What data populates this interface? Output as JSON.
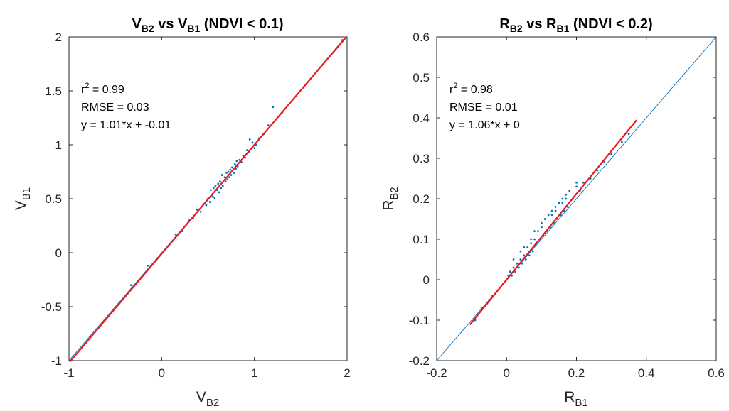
{
  "chart_data": [
    {
      "type": "scatter",
      "title_main": "V",
      "title_sub1": "B2",
      "title_mid": " vs V",
      "title_sub2": "B1",
      "title_tail": " (NDVI < 0.1)",
      "xlabel_main": "V",
      "xlabel_sub": "B2",
      "ylabel_main": "V",
      "ylabel_sub": "B1",
      "xlim": [
        -1,
        2
      ],
      "ylim": [
        -1,
        2
      ],
      "xticks": [
        -1,
        0,
        1,
        2
      ],
      "xtick_labels": [
        "-1",
        "0",
        "1",
        "2"
      ],
      "yticks": [
        -1,
        -0.5,
        0,
        0.5,
        1,
        1.5,
        2
      ],
      "ytick_labels": [
        "-1",
        "-0.5",
        "0",
        "0.5",
        "1",
        "1.5",
        "2"
      ],
      "grid": false,
      "annotations": {
        "r2_prefix": "r",
        "r2_sup": "2",
        "r2_value": " = 0.99",
        "rmse": "RMSE = 0.03",
        "equation": "y = 1.01*x + -0.01"
      },
      "reference_line": {
        "name": "1:1",
        "slope": 1,
        "intercept": 0,
        "x_range": [
          -1,
          2
        ],
        "color": "#0072BD"
      },
      "fit_line": {
        "name": "fit",
        "slope": 1.01,
        "intercept": -0.01,
        "x_range": [
          -0.99,
          1.98
        ],
        "color": "#E81C1C"
      },
      "scatter_color": "#0072BD",
      "points": {
        "x": [
          -0.33,
          -0.15,
          0.15,
          0.22,
          0.3,
          0.34,
          0.38,
          0.42,
          0.45,
          0.48,
          0.5,
          0.52,
          0.53,
          0.55,
          0.56,
          0.57,
          0.58,
          0.6,
          0.61,
          0.62,
          0.63,
          0.64,
          0.65,
          0.66,
          0.68,
          0.69,
          0.7,
          0.71,
          0.72,
          0.73,
          0.74,
          0.75,
          0.76,
          0.78,
          0.79,
          0.8,
          0.81,
          0.82,
          0.84,
          0.86,
          0.88,
          0.9,
          0.92,
          0.94,
          0.95,
          0.97,
          0.98,
          1.0,
          1.02,
          1.05,
          1.1,
          1.15,
          1.2,
          1.3,
          1.95
        ],
        "y": [
          -0.3,
          -0.12,
          0.17,
          0.2,
          0.3,
          0.32,
          0.4,
          0.38,
          0.45,
          0.44,
          0.5,
          0.47,
          0.58,
          0.52,
          0.6,
          0.51,
          0.62,
          0.58,
          0.64,
          0.56,
          0.66,
          0.6,
          0.72,
          0.62,
          0.7,
          0.66,
          0.74,
          0.68,
          0.75,
          0.7,
          0.77,
          0.72,
          0.79,
          0.74,
          0.82,
          0.78,
          0.85,
          0.8,
          0.86,
          0.84,
          0.9,
          0.88,
          0.95,
          0.93,
          1.05,
          0.96,
          1.02,
          0.97,
          1.0,
          1.06,
          1.1,
          1.18,
          1.35,
          1.3,
          1.97
        ]
      }
    },
    {
      "type": "scatter",
      "title_main": "R",
      "title_sub1": "B2",
      "title_mid": " vs R",
      "title_sub2": "B1",
      "title_tail": " (NDVI < 0.2)",
      "xlabel_main": "R",
      "xlabel_sub": "B1",
      "ylabel_main": "R",
      "ylabel_sub": "B2",
      "xlim": [
        -0.2,
        0.6
      ],
      "ylim": [
        -0.2,
        0.6
      ],
      "xticks": [
        -0.2,
        0,
        0.2,
        0.4,
        0.6
      ],
      "xtick_labels": [
        "-0.2",
        "0",
        "0.2",
        "0.4",
        "0.6"
      ],
      "yticks": [
        -0.2,
        -0.1,
        0,
        0.1,
        0.2,
        0.3,
        0.4,
        0.5,
        0.6
      ],
      "ytick_labels": [
        "-0.2",
        "-0.1",
        "0",
        "0.1",
        "0.2",
        "0.3",
        "0.4",
        "0.5",
        "0.6"
      ],
      "grid": false,
      "annotations": {
        "r2_prefix": "r",
        "r2_sup": "2",
        "r2_value": " = 0.98",
        "rmse": "RMSE = 0.01",
        "equation": "y = 1.06*x + 0"
      },
      "reference_line": {
        "name": "1:1",
        "slope": 1,
        "intercept": 0,
        "x_range": [
          -0.2,
          0.6
        ],
        "color": "#0072BD"
      },
      "fit_line": {
        "name": "fit",
        "slope": 1.06,
        "intercept": 0,
        "x_range": [
          -0.105,
          0.372
        ],
        "color": "#E81C1C"
      },
      "scatter_color": "#0072BD",
      "points": {
        "x": [
          -0.09,
          -0.07,
          -0.05,
          -0.04,
          -0.02,
          -0.01,
          0.0,
          0.005,
          0.01,
          0.015,
          0.02,
          0.025,
          0.03,
          0.035,
          0.04,
          0.045,
          0.05,
          0.055,
          0.06,
          0.065,
          0.07,
          0.075,
          0.08,
          0.085,
          0.09,
          0.095,
          0.1,
          0.105,
          0.11,
          0.115,
          0.12,
          0.125,
          0.13,
          0.135,
          0.14,
          0.145,
          0.15,
          0.155,
          0.16,
          0.165,
          0.17,
          0.175,
          0.18,
          0.19,
          0.2,
          0.21,
          0.22,
          0.24,
          0.26,
          0.28,
          0.3,
          0.33,
          0.35,
          0.02,
          0.05,
          0.08,
          0.11,
          0.14,
          0.17,
          0.2,
          0.04,
          0.07,
          0.1,
          0.13,
          0.16
        ],
        "y": [
          -0.1,
          -0.07,
          -0.05,
          -0.04,
          -0.02,
          -0.01,
          0.0,
          0.01,
          0.02,
          0.01,
          0.03,
          0.02,
          0.04,
          0.03,
          0.05,
          0.04,
          0.06,
          0.05,
          0.08,
          0.06,
          0.09,
          0.07,
          0.1,
          0.09,
          0.12,
          0.1,
          0.13,
          0.11,
          0.15,
          0.12,
          0.16,
          0.13,
          0.17,
          0.14,
          0.18,
          0.15,
          0.19,
          0.16,
          0.2,
          0.17,
          0.21,
          0.18,
          0.22,
          0.2,
          0.23,
          0.22,
          0.24,
          0.25,
          0.27,
          0.29,
          0.31,
          0.34,
          0.36,
          0.05,
          0.08,
          0.12,
          0.15,
          0.17,
          0.2,
          0.24,
          0.07,
          0.1,
          0.14,
          0.16,
          0.19
        ]
      }
    }
  ]
}
